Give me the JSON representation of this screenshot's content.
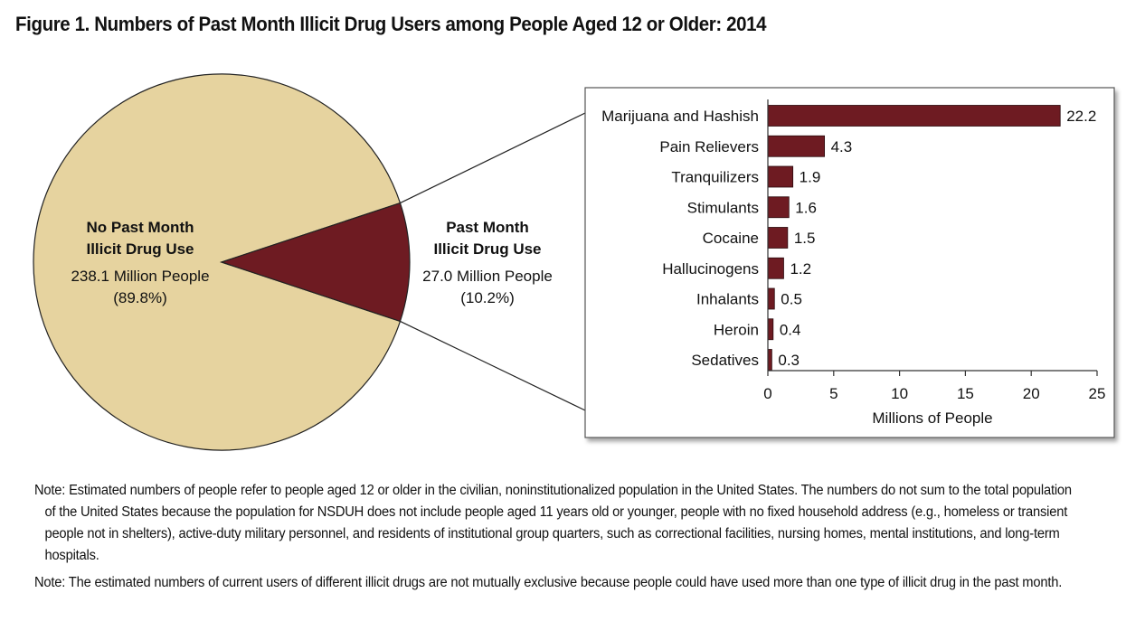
{
  "title": "Figure 1. Numbers of Past Month Illicit Drug Users among People Aged 12 or Older: 2014",
  "chart_data": [
    {
      "type": "pie",
      "slices": [
        {
          "name": "No Past Month Illicit Drug Use",
          "label_line1": "No Past Month",
          "label_line2": "Illicit Drug Use",
          "value_text": "238.1 Million People",
          "pct_text": "(89.8%)",
          "value": 238.1,
          "percent": 89.8,
          "color": "#e6d39f"
        },
        {
          "name": "Past Month Illicit Drug Use",
          "label_line1": "Past Month",
          "label_line2": "Illicit Drug Use",
          "value_text": "27.0 Million People",
          "pct_text": "(10.2%)",
          "value": 27.0,
          "percent": 10.2,
          "color": "#6e1b22"
        }
      ]
    },
    {
      "type": "bar",
      "orientation": "horizontal",
      "categories": [
        "Marijuana and Hashish",
        "Pain Relievers",
        "Tranquilizers",
        "Stimulants",
        "Cocaine",
        "Hallucinogens",
        "Inhalants",
        "Heroin",
        "Sedatives"
      ],
      "values": [
        22.2,
        4.3,
        1.9,
        1.6,
        1.5,
        1.2,
        0.5,
        0.4,
        0.3
      ],
      "value_labels": [
        "22.2",
        "4.3",
        "1.9",
        "1.6",
        "1.5",
        "1.2",
        "0.5",
        "0.4",
        "0.3"
      ],
      "xlabel": "Millions of People",
      "xlim": [
        0,
        25
      ],
      "xticks": [
        0,
        5,
        10,
        15,
        20,
        25
      ],
      "xtick_labels": [
        "0",
        "5",
        "10",
        "15",
        "20",
        "25"
      ],
      "bar_color": "#6e1b22",
      "grid": false
    }
  ],
  "notes": [
    "Note: Estimated numbers of people refer to people aged 12 or older in the civilian, noninstitutionalized population in the United States. The numbers do not sum to the total population of the United States because the population for NSDUH does not include people aged 11 years old or younger, people with no fixed household address (e.g., homeless or transient people not in shelters), active-duty military personnel, and residents of institutional group quarters, such as correctional facilities, nursing homes, mental institutions, and long-term hospitals.",
    "Note: The estimated numbers of current users of different illicit drugs are not mutually exclusive because people could have used more than one type of illicit drug in the past month."
  ]
}
